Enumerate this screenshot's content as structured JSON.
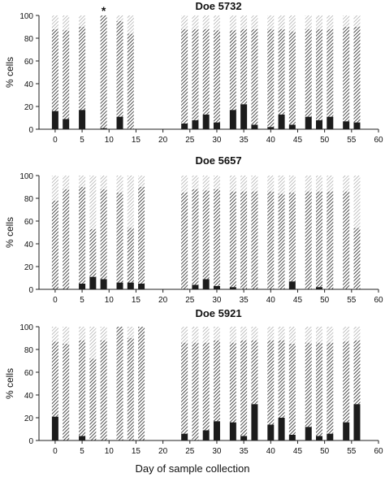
{
  "figure": {
    "xlabel": "Day of sample collection",
    "colors": {
      "black_segment": "#1c1c1c",
      "hatch_dense": "#3a3a3a",
      "hatch_light": "#9a9a9a",
      "axis": "#222222"
    }
  },
  "chart_data": [
    {
      "type": "bar",
      "stacked": true,
      "title": "Doe 5732",
      "ylabel": "% cells",
      "xlim": [
        -3,
        60
      ],
      "ylim": [
        0,
        100
      ],
      "xticks": [
        0,
        5,
        10,
        15,
        20,
        25,
        30,
        35,
        40,
        45,
        50,
        55,
        60
      ],
      "yticks": [
        0,
        20,
        40,
        60,
        80,
        100
      ],
      "annotations": [
        {
          "text": "*",
          "x": 9
        }
      ],
      "x": [
        0,
        2,
        5,
        9,
        12,
        14,
        24,
        26,
        28,
        30,
        33,
        35,
        37,
        40,
        42,
        44,
        47,
        49,
        51,
        54,
        56
      ],
      "series": [
        {
          "pattern": "solid-black",
          "values": [
            16,
            9,
            17,
            1,
            11,
            0,
            5,
            8,
            13,
            6,
            17,
            22,
            4,
            2,
            13,
            4,
            11,
            8,
            11,
            7,
            6
          ]
        },
        {
          "pattern": "dense-hatch",
          "values": [
            72,
            78,
            73,
            99,
            84,
            84,
            83,
            80,
            75,
            81,
            70,
            66,
            84,
            86,
            75,
            82,
            77,
            80,
            77,
            83,
            84
          ]
        },
        {
          "pattern": "light-hatch",
          "values": [
            12,
            13,
            10,
            0,
            5,
            16,
            12,
            12,
            12,
            13,
            13,
            12,
            12,
            12,
            12,
            14,
            12,
            12,
            12,
            10,
            10
          ]
        }
      ]
    },
    {
      "type": "bar",
      "stacked": true,
      "title": "Doe 5657",
      "ylabel": "% cells",
      "xlim": [
        -3,
        60
      ],
      "ylim": [
        0,
        100
      ],
      "xticks": [
        0,
        5,
        10,
        15,
        20,
        25,
        30,
        35,
        40,
        45,
        50,
        55,
        60
      ],
      "yticks": [
        0,
        20,
        40,
        60,
        80,
        100
      ],
      "annotations": [],
      "x": [
        0,
        2,
        5,
        7,
        9,
        12,
        14,
        16,
        24,
        26,
        28,
        30,
        33,
        35,
        37,
        40,
        42,
        44,
        47,
        49,
        51,
        54,
        56
      ],
      "series": [
        {
          "pattern": "solid-black",
          "values": [
            0,
            0,
            5,
            11,
            9,
            6,
            6,
            5,
            0,
            4,
            9,
            3,
            2,
            0,
            0,
            0,
            0,
            7,
            0,
            2,
            0,
            0,
            0
          ]
        },
        {
          "pattern": "dense-hatch",
          "values": [
            78,
            88,
            85,
            42,
            79,
            79,
            48,
            85,
            85,
            84,
            78,
            85,
            84,
            86,
            86,
            86,
            84,
            78,
            86,
            84,
            86,
            86,
            54
          ]
        },
        {
          "pattern": "light-hatch",
          "values": [
            22,
            12,
            10,
            47,
            12,
            15,
            46,
            10,
            15,
            12,
            13,
            12,
            14,
            14,
            14,
            14,
            16,
            15,
            14,
            14,
            14,
            14,
            46
          ]
        }
      ]
    },
    {
      "type": "bar",
      "stacked": true,
      "title": "Doe 5921",
      "ylabel": "% cells",
      "xlim": [
        -3,
        60
      ],
      "ylim": [
        0,
        100
      ],
      "xticks": [
        0,
        5,
        10,
        15,
        20,
        25,
        30,
        35,
        40,
        45,
        50,
        55,
        60
      ],
      "yticks": [
        0,
        20,
        40,
        60,
        80,
        100
      ],
      "annotations": [],
      "x": [
        0,
        2,
        5,
        7,
        9,
        12,
        14,
        16,
        24,
        26,
        28,
        30,
        33,
        35,
        37,
        40,
        42,
        44,
        47,
        49,
        51,
        54,
        56
      ],
      "series": [
        {
          "pattern": "solid-black",
          "values": [
            21,
            0,
            4,
            0,
            0,
            0,
            0,
            0,
            6,
            0,
            9,
            17,
            16,
            4,
            32,
            14,
            20,
            5,
            12,
            4,
            6,
            16,
            32
          ]
        },
        {
          "pattern": "dense-hatch",
          "values": [
            66,
            85,
            84,
            72,
            88,
            100,
            90,
            100,
            80,
            86,
            77,
            71,
            70,
            84,
            56,
            74,
            68,
            80,
            74,
            82,
            80,
            71,
            56
          ]
        },
        {
          "pattern": "light-hatch",
          "values": [
            13,
            15,
            12,
            28,
            12,
            0,
            10,
            0,
            14,
            14,
            14,
            12,
            14,
            12,
            12,
            12,
            12,
            15,
            14,
            14,
            14,
            13,
            12
          ]
        }
      ]
    }
  ]
}
